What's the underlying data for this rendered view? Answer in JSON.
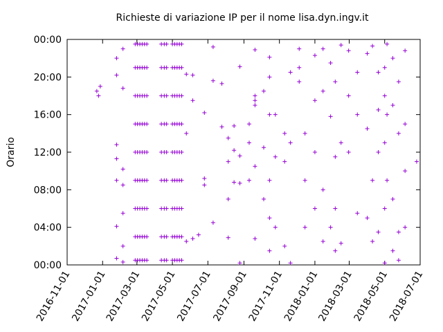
{
  "chart_data": {
    "type": "scatter",
    "title": "Richieste di variazione IP per il nome lisa.dyn.ingv.it",
    "ylabel": "Orario",
    "color": "#9400d3",
    "marker": "+",
    "xlim": [
      "2016-11-01",
      "2018-07-01"
    ],
    "xticks": [
      "2016-11-01",
      "2017-01-01",
      "2017-03-01",
      "2017-05-01",
      "2017-07-01",
      "2017-09-01",
      "2017-11-01",
      "2018-01-01",
      "2018-03-01",
      "2018-05-01",
      "2018-07-01"
    ],
    "ylim": [
      0,
      24
    ],
    "yticks": [
      {
        "value": 0,
        "label": "00:00"
      },
      {
        "value": 4,
        "label": "04:00"
      },
      {
        "value": 8,
        "label": "08:00"
      },
      {
        "value": 12,
        "label": "12:00"
      },
      {
        "value": 16,
        "label": "16:00"
      },
      {
        "value": 20,
        "label": "20:00"
      },
      {
        "value": 24,
        "label": "00:00"
      }
    ],
    "x": [
      "2016-12-22",
      "2016-12-25",
      "2016-12-28",
      "2017-01-25",
      "2017-01-25",
      "2017-01-25",
      "2017-01-25",
      "2017-01-25",
      "2017-01-25",
      "2017-01-25",
      "2017-02-05",
      "2017-02-05",
      "2017-02-05",
      "2017-02-05",
      "2017-02-05",
      "2017-02-05",
      "2017-02-05",
      "2017-02-26",
      "2017-02-26",
      "2017-02-26",
      "2017-02-26",
      "2017-02-26",
      "2017-02-26",
      "2017-02-26",
      "2017-02-26",
      "2017-02-26",
      "2017-03-02",
      "2017-03-02",
      "2017-03-02",
      "2017-03-02",
      "2017-03-02",
      "2017-03-02",
      "2017-03-02",
      "2017-03-02",
      "2017-03-02",
      "2017-03-06",
      "2017-03-06",
      "2017-03-06",
      "2017-03-06",
      "2017-03-06",
      "2017-03-06",
      "2017-03-06",
      "2017-03-06",
      "2017-03-06",
      "2017-03-10",
      "2017-03-10",
      "2017-03-10",
      "2017-03-10",
      "2017-03-10",
      "2017-03-10",
      "2017-03-10",
      "2017-03-10",
      "2017-03-10",
      "2017-03-14",
      "2017-03-14",
      "2017-03-14",
      "2017-03-14",
      "2017-03-14",
      "2017-03-14",
      "2017-03-14",
      "2017-03-14",
      "2017-03-14",
      "2017-03-18",
      "2017-03-18",
      "2017-03-18",
      "2017-03-18",
      "2017-03-18",
      "2017-03-18",
      "2017-03-18",
      "2017-03-18",
      "2017-03-18",
      "2017-04-12",
      "2017-04-12",
      "2017-04-12",
      "2017-04-12",
      "2017-04-12",
      "2017-04-12",
      "2017-04-12",
      "2017-04-12",
      "2017-04-12",
      "2017-04-17",
      "2017-04-17",
      "2017-04-17",
      "2017-04-17",
      "2017-04-17",
      "2017-04-17",
      "2017-04-17",
      "2017-04-17",
      "2017-04-17",
      "2017-04-21",
      "2017-04-21",
      "2017-04-21",
      "2017-04-21",
      "2017-04-21",
      "2017-04-21",
      "2017-04-21",
      "2017-04-21",
      "2017-04-21",
      "2017-05-01",
      "2017-05-01",
      "2017-05-01",
      "2017-05-01",
      "2017-05-01",
      "2017-05-01",
      "2017-05-01",
      "2017-05-01",
      "2017-05-01",
      "2017-05-05",
      "2017-05-05",
      "2017-05-05",
      "2017-05-05",
      "2017-05-05",
      "2017-05-05",
      "2017-05-05",
      "2017-05-05",
      "2017-05-05",
      "2017-05-09",
      "2017-05-09",
      "2017-05-09",
      "2017-05-09",
      "2017-05-09",
      "2017-05-09",
      "2017-05-09",
      "2017-05-09",
      "2017-05-09",
      "2017-05-13",
      "2017-05-13",
      "2017-05-13",
      "2017-05-13",
      "2017-05-13",
      "2017-05-13",
      "2017-05-13",
      "2017-05-13",
      "2017-05-13",
      "2017-05-17",
      "2017-05-17",
      "2017-05-17",
      "2017-05-17",
      "2017-05-17",
      "2017-05-17",
      "2017-05-17",
      "2017-05-17",
      "2017-05-17",
      "2017-05-25",
      "2017-05-25",
      "2017-05-25",
      "2017-06-05",
      "2017-06-05",
      "2017-06-05",
      "2017-06-15",
      "2017-06-25",
      "2017-06-25",
      "2017-06-25",
      "2017-07-10",
      "2017-07-10",
      "2017-07-10",
      "2017-07-25",
      "2017-07-25",
      "2017-08-05",
      "2017-08-05",
      "2017-08-05",
      "2017-08-05",
      "2017-08-15",
      "2017-08-15",
      "2017-08-15",
      "2017-08-25",
      "2017-08-25",
      "2017-08-25",
      "2017-08-25",
      "2017-09-10",
      "2017-09-10",
      "2017-09-10",
      "2017-09-20",
      "2017-09-20",
      "2017-09-20",
      "2017-09-20",
      "2017-09-20",
      "2017-09-20",
      "2017-10-05",
      "2017-10-05",
      "2017-10-05",
      "2017-10-15",
      "2017-10-15",
      "2017-10-15",
      "2017-10-15",
      "2017-10-15",
      "2017-10-15",
      "2017-10-25",
      "2017-10-25",
      "2017-10-25",
      "2017-11-10",
      "2017-11-10",
      "2017-11-10",
      "2017-11-20",
      "2017-11-20",
      "2017-11-20",
      "2017-12-05",
      "2017-12-05",
      "2017-12-05",
      "2017-12-15",
      "2017-12-15",
      "2017-12-15",
      "2018-01-01",
      "2018-01-01",
      "2018-01-01",
      "2018-01-01",
      "2018-01-15",
      "2018-01-15",
      "2018-01-15",
      "2018-01-15",
      "2018-01-28",
      "2018-01-28",
      "2018-01-28",
      "2018-02-05",
      "2018-02-05",
      "2018-02-05",
      "2018-02-05",
      "2018-02-15",
      "2018-02-15",
      "2018-02-15",
      "2018-02-28",
      "2018-02-28",
      "2018-02-28",
      "2018-03-15",
      "2018-03-15",
      "2018-03-15",
      "2018-04-01",
      "2018-04-01",
      "2018-04-01",
      "2018-04-10",
      "2018-04-10",
      "2018-04-10",
      "2018-04-20",
      "2018-04-20",
      "2018-04-20",
      "2018-04-20",
      "2018-05-01",
      "2018-05-01",
      "2018-05-01",
      "2018-05-01",
      "2018-05-01",
      "2018-05-05",
      "2018-05-05",
      "2018-05-05",
      "2018-05-15",
      "2018-05-15",
      "2018-05-15",
      "2018-05-15",
      "2018-05-25",
      "2018-05-25",
      "2018-05-25",
      "2018-05-25",
      "2018-06-05",
      "2018-06-05",
      "2018-06-05",
      "2018-06-05",
      "2018-06-25"
    ],
    "values": [
      18.5,
      18.0,
      19.0,
      11.3,
      12.8,
      22.0,
      20.2,
      4.1,
      9.0,
      0.7,
      23.0,
      18.8,
      5.5,
      2.0,
      0.3,
      10.2,
      8.5,
      0.5,
      3,
      6,
      9,
      12,
      15,
      18,
      21,
      23.5,
      0.5,
      3,
      6,
      9,
      12,
      15,
      18,
      21,
      23.5,
      0.5,
      3,
      6,
      9,
      12,
      15,
      18,
      21,
      23.5,
      0.5,
      3,
      6,
      9,
      12,
      15,
      18,
      21,
      23.5,
      0.5,
      3,
      6,
      9,
      12,
      15,
      18,
      21,
      23.5,
      0.5,
      3,
      6,
      9,
      12,
      15,
      18,
      21,
      23.5,
      0.5,
      3,
      6,
      9,
      12,
      15,
      18,
      21,
      23.5,
      0.5,
      3,
      6,
      9,
      12,
      15,
      18,
      21,
      23.5,
      0.5,
      3,
      6,
      9,
      12,
      15,
      18,
      21,
      23.5,
      0.5,
      3,
      6,
      9,
      12,
      15,
      18,
      21,
      23.5,
      0.5,
      3,
      6,
      9,
      12,
      15,
      18,
      21,
      23.5,
      0.5,
      3,
      6,
      9,
      12,
      15,
      18,
      21,
      23.5,
      0.5,
      3,
      6,
      9,
      12,
      15,
      18,
      21,
      23.5,
      0.5,
      3,
      6,
      9,
      12,
      15,
      18,
      21,
      23.5,
      20.3,
      14.0,
      2.5,
      20.2,
      17.5,
      2.8,
      3.2,
      16.2,
      8.5,
      9.2,
      23.2,
      19.6,
      4.5,
      14.7,
      19.3,
      7.0,
      11.0,
      2.9,
      13.5,
      12.2,
      8.8,
      14.8,
      21.1,
      8.7,
      11.6,
      0.2,
      9.0,
      13.0,
      15.0,
      17.5,
      18.0,
      17.0,
      10.5,
      2.8,
      22.9,
      18.5,
      12.5,
      7.0,
      22.1,
      20.0,
      16.0,
      9.0,
      1.5,
      5.0,
      16.0,
      11.5,
      4.0,
      2.0,
      14.0,
      11.0,
      13.0,
      20.5,
      0.2,
      23.0,
      19.5,
      21.0,
      4.0,
      9.0,
      14.0,
      6.0,
      12.0,
      17.5,
      22.3,
      23.0,
      2.5,
      8.0,
      18.5,
      21.5,
      15.8,
      4.0,
      19.5,
      11.5,
      1.5,
      6.0,
      23.4,
      13.0,
      2.3,
      22.8,
      18.0,
      12.0,
      16.0,
      5.5,
      20.5,
      22.5,
      14.5,
      5.0,
      23.3,
      9.0,
      2.5,
      20.5,
      16.5,
      3.5,
      12.0,
      21.0,
      18.0,
      13.0,
      6.0,
      0.2,
      23.5,
      16.0,
      9.0,
      22.0,
      17.0,
      7.0,
      1.5,
      19.5,
      14.0,
      3.5,
      0.5,
      22.8,
      15.0,
      10.0,
      4.0,
      11.0
    ]
  }
}
